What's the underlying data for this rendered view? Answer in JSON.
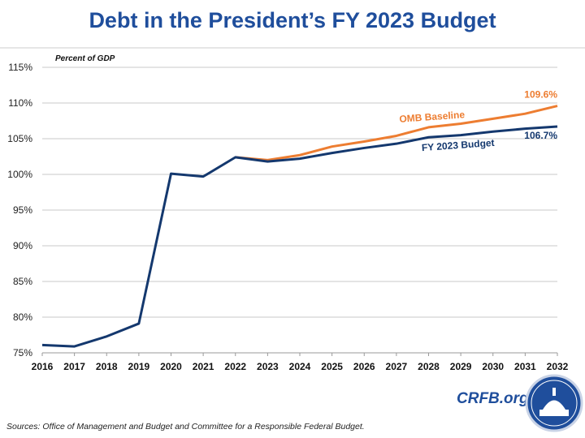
{
  "title": "Debt in the President’s FY 2023 Budget",
  "source": "Sources: Office of Management and Budget and Committee for a Responsible Federal Budget.",
  "brand": "CRFB.org",
  "chart_data": {
    "type": "line",
    "ylabel": "Percent of GDP",
    "ylim": [
      75,
      115
    ],
    "yticks": [
      "75%",
      "80%",
      "85%",
      "90%",
      "95%",
      "100%",
      "105%",
      "110%",
      "115%"
    ],
    "x": [
      2016,
      2017,
      2018,
      2019,
      2020,
      2021,
      2022,
      2023,
      2024,
      2025,
      2026,
      2027,
      2028,
      2029,
      2030,
      2031,
      2032
    ],
    "grid": true,
    "series": [
      {
        "name": "OMB Baseline",
        "color": "#ed7d31",
        "end_label": "109.6%",
        "values": [
          null,
          null,
          null,
          null,
          null,
          null,
          102.4,
          102.0,
          102.7,
          103.9,
          104.6,
          105.4,
          106.6,
          107.1,
          107.8,
          108.5,
          109.6
        ]
      },
      {
        "name": "FY 2023 Budget",
        "color": "#14386e",
        "end_label": "106.7%",
        "values": [
          76.1,
          75.9,
          77.3,
          79.1,
          100.1,
          99.7,
          102.4,
          101.8,
          102.2,
          103.0,
          103.7,
          104.3,
          105.2,
          105.5,
          106.0,
          106.4,
          106.7
        ]
      }
    ]
  }
}
